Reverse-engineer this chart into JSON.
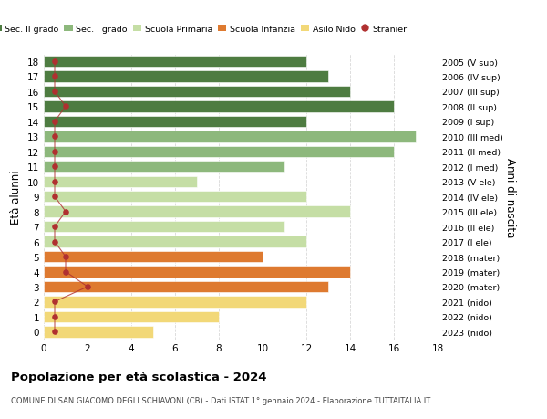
{
  "ages": [
    18,
    17,
    16,
    15,
    14,
    13,
    12,
    11,
    10,
    9,
    8,
    7,
    6,
    5,
    4,
    3,
    2,
    1,
    0
  ],
  "right_labels": [
    "2005 (V sup)",
    "2006 (IV sup)",
    "2007 (III sup)",
    "2008 (II sup)",
    "2009 (I sup)",
    "2010 (III med)",
    "2011 (II med)",
    "2012 (I med)",
    "2013 (V ele)",
    "2014 (IV ele)",
    "2015 (III ele)",
    "2016 (II ele)",
    "2017 (I ele)",
    "2018 (mater)",
    "2019 (mater)",
    "2020 (mater)",
    "2021 (nido)",
    "2022 (nido)",
    "2023 (nido)"
  ],
  "bar_values": [
    12,
    13,
    14,
    16,
    12,
    17,
    16,
    11,
    7,
    12,
    14,
    11,
    12,
    10,
    14,
    13,
    12,
    8,
    5
  ],
  "bar_colors": [
    "#4e7c41",
    "#4e7c41",
    "#4e7c41",
    "#4e7c41",
    "#4e7c41",
    "#8db87c",
    "#8db87c",
    "#8db87c",
    "#c5dea5",
    "#c5dea5",
    "#c5dea5",
    "#c5dea5",
    "#c5dea5",
    "#de7a30",
    "#de7a30",
    "#de7a30",
    "#f2d878",
    "#f2d878",
    "#f2d878"
  ],
  "stranieri_x": [
    0.5,
    0.5,
    0.5,
    1.0,
    0.5,
    0.5,
    0.5,
    0.5,
    0.5,
    0.5,
    1.0,
    0.5,
    0.5,
    1.0,
    1.0,
    2.0,
    0.5,
    0.5,
    0.5
  ],
  "stranieri_color": "#b03030",
  "xlim": [
    0,
    18
  ],
  "ylim": [
    -0.5,
    18.5
  ],
  "xlabel_ticks": [
    0,
    2,
    4,
    6,
    8,
    10,
    12,
    14,
    16,
    18
  ],
  "ylabel": "Età alunni",
  "right_ylabel": "Anni di nascita",
  "legend_labels": [
    "Sec. II grado",
    "Sec. I grado",
    "Scuola Primaria",
    "Scuola Infanzia",
    "Asilo Nido",
    "Stranieri"
  ],
  "legend_colors": [
    "#4e7c41",
    "#8db87c",
    "#c5dea5",
    "#de7a30",
    "#f2d878",
    "#b03030"
  ],
  "title": "Popolazione per età scolastica - 2024",
  "subtitle": "COMUNE DI SAN GIACOMO DEGLI SCHIAVONI (CB) - Dati ISTAT 1° gennaio 2024 - Elaborazione TUTTAITALIA.IT",
  "bar_height": 0.75,
  "grid_color": "#d8d8d8",
  "bg_color": "#ffffff"
}
